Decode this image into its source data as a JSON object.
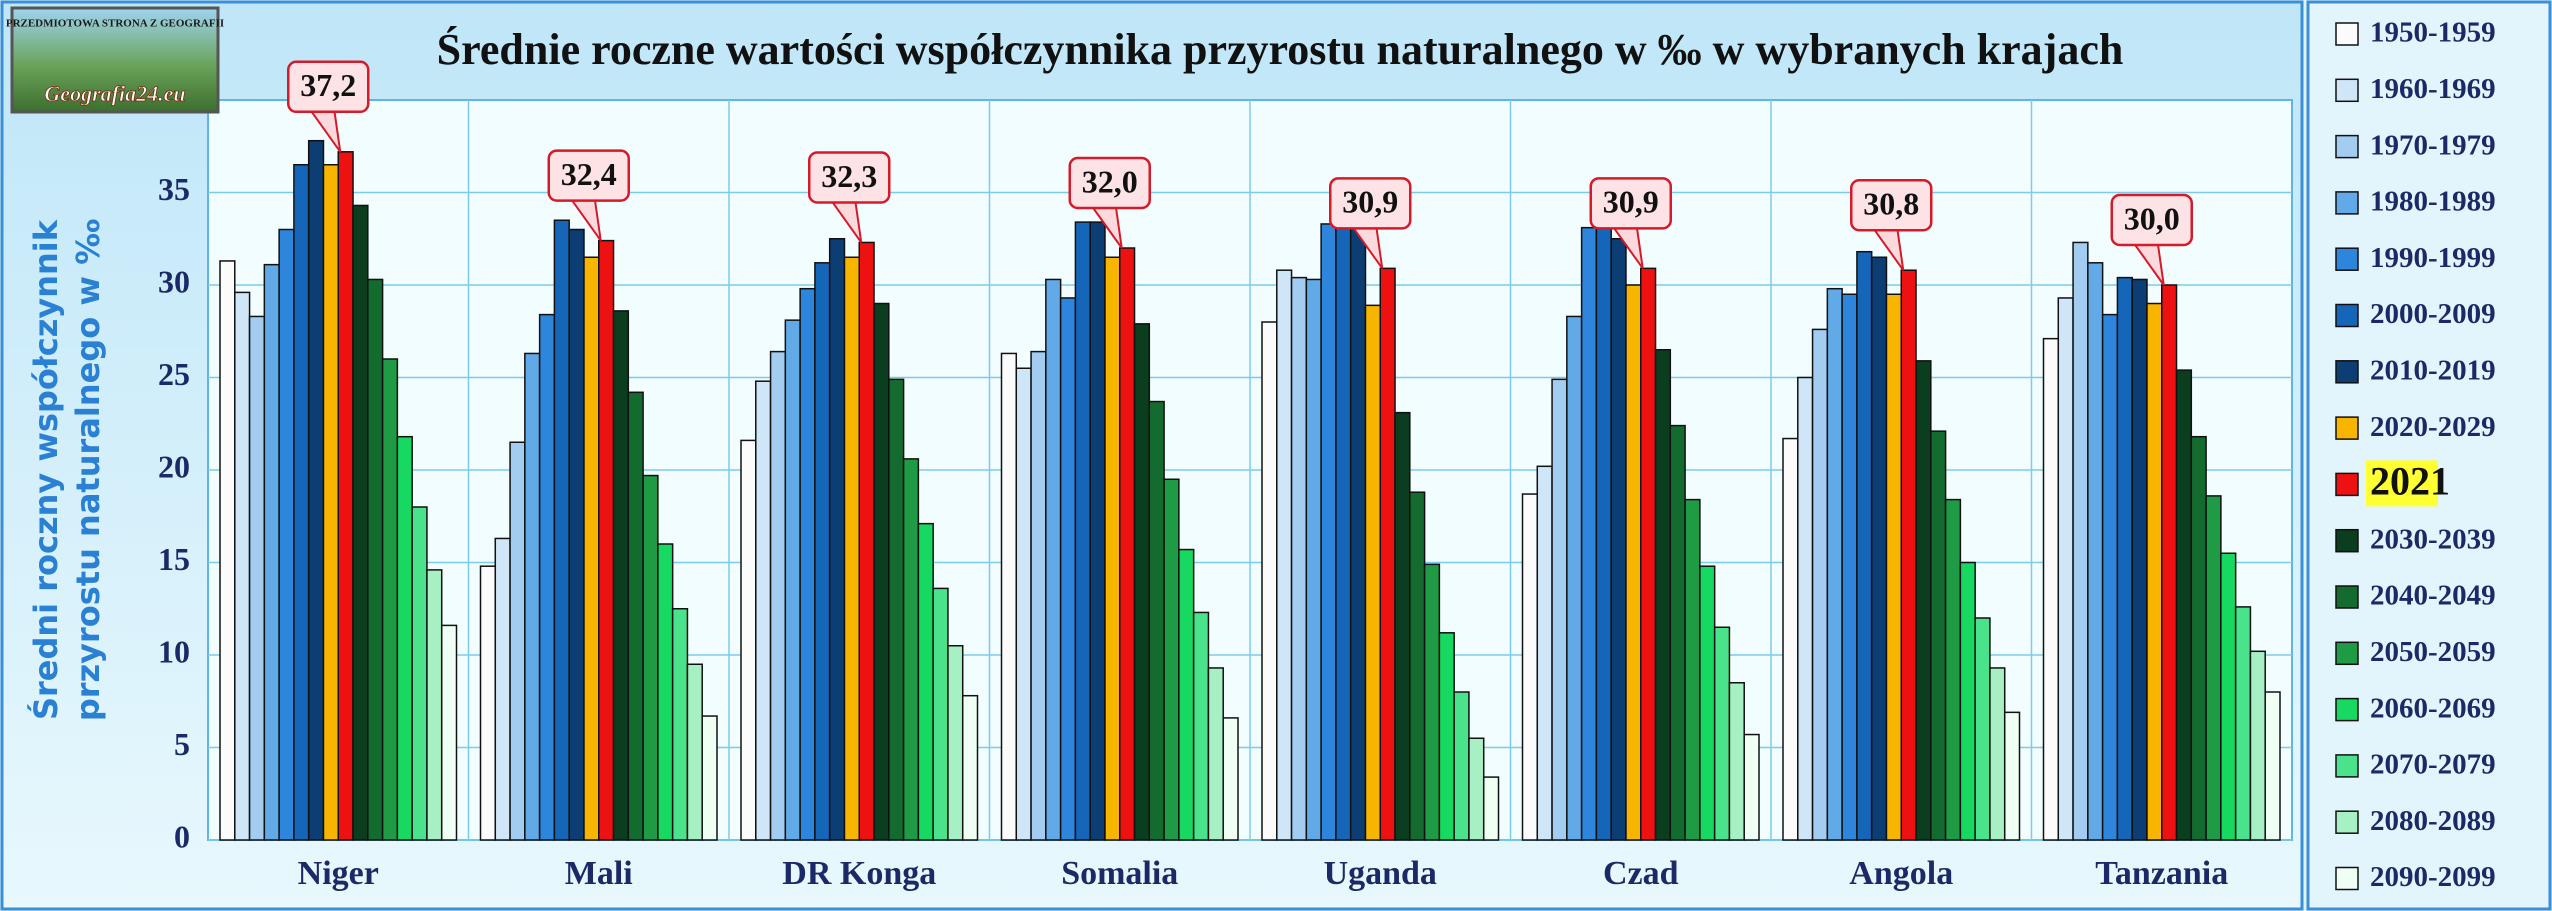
{
  "chart_data": {
    "type": "bar",
    "title": "Średnie roczne wartości współczynnika przyrostu naturalnego w ‰ w wybranych krajach",
    "ylabel": [
      "Średni roczny współczynnik",
      "przyrostu naturalnego w ‰"
    ],
    "logo_text": [
      "PRZEDMIOTOWA STRONA Z GEOGRAFII",
      "Geografia24.eu"
    ],
    "categories": [
      "Niger",
      "Mali",
      "DR Konga",
      "Somalia",
      "Uganda",
      "Czad",
      "Angola",
      "Tanzania"
    ],
    "ylim": [
      0,
      40
    ],
    "yticks": [
      0,
      5,
      10,
      15,
      20,
      25,
      30,
      35
    ],
    "grid": true,
    "legend": "right",
    "series": [
      {
        "name": "1950-1959",
        "color": "#fbfbfb",
        "values": [
          31.3,
          14.8,
          21.6,
          26.3,
          28.0,
          18.7,
          21.7,
          27.1
        ]
      },
      {
        "name": "1960-1969",
        "color": "#cfe6f8",
        "values": [
          29.6,
          16.3,
          24.8,
          25.5,
          30.8,
          20.2,
          25.0,
          29.3
        ]
      },
      {
        "name": "1970-1979",
        "color": "#a2cdf0",
        "values": [
          28.3,
          21.5,
          26.4,
          26.4,
          30.4,
          24.9,
          27.6,
          32.3
        ]
      },
      {
        "name": "1980-1989",
        "color": "#62aae7",
        "values": [
          31.1,
          26.3,
          28.1,
          30.3,
          30.3,
          28.3,
          29.8,
          31.2
        ]
      },
      {
        "name": "1990-1999",
        "color": "#2e86dc",
        "values": [
          33.0,
          28.4,
          29.8,
          29.3,
          33.3,
          33.1,
          29.5,
          28.4
        ]
      },
      {
        "name": "2000-2009",
        "color": "#1565b8",
        "values": [
          36.5,
          33.5,
          31.2,
          33.4,
          34.0,
          33.1,
          31.8,
          30.4
        ]
      },
      {
        "name": "2010-2019",
        "color": "#0d3e73",
        "values": [
          37.8,
          33.0,
          32.5,
          33.4,
          33.3,
          32.5,
          31.5,
          30.3
        ]
      },
      {
        "name": "2020-2029",
        "color": "#f7b500",
        "values": [
          36.5,
          31.5,
          31.5,
          31.5,
          28.9,
          30.0,
          29.5,
          29.0
        ]
      },
      {
        "name": "2021",
        "color": "#ee1111",
        "values": [
          37.2,
          32.4,
          32.3,
          32.0,
          30.9,
          30.9,
          30.8,
          30.0
        ],
        "value_labels": [
          "37,2",
          "32,4",
          "32,3",
          "32,0",
          "30,9",
          "30,9",
          "30,8",
          "30,0"
        ]
      },
      {
        "name": "2030-2039",
        "color": "#0b3d1f",
        "values": [
          34.3,
          28.6,
          29.0,
          27.9,
          23.1,
          26.5,
          25.9,
          25.4
        ]
      },
      {
        "name": "2040-2049",
        "color": "#146b30",
        "values": [
          30.3,
          24.2,
          24.9,
          23.7,
          18.8,
          22.4,
          22.1,
          21.8
        ]
      },
      {
        "name": "2050-2059",
        "color": "#1f9a45",
        "values": [
          26.0,
          19.7,
          20.6,
          19.5,
          14.9,
          18.4,
          18.4,
          18.6
        ]
      },
      {
        "name": "2060-2069",
        "color": "#17d861",
        "values": [
          21.8,
          16.0,
          17.1,
          15.7,
          11.2,
          14.8,
          15.0,
          15.5
        ]
      },
      {
        "name": "2070-2079",
        "color": "#4ae38b",
        "values": [
          18.0,
          12.5,
          13.6,
          12.3,
          8.0,
          11.5,
          12.0,
          12.6
        ]
      },
      {
        "name": "2080-2089",
        "color": "#a6f0c4",
        "values": [
          14.6,
          9.5,
          10.5,
          9.3,
          5.5,
          8.5,
          9.3,
          10.2
        ]
      },
      {
        "name": "2090-2099",
        "color": "#f0fff4",
        "values": [
          11.6,
          6.7,
          7.8,
          6.6,
          3.4,
          5.7,
          6.9,
          8.0
        ]
      }
    ]
  }
}
